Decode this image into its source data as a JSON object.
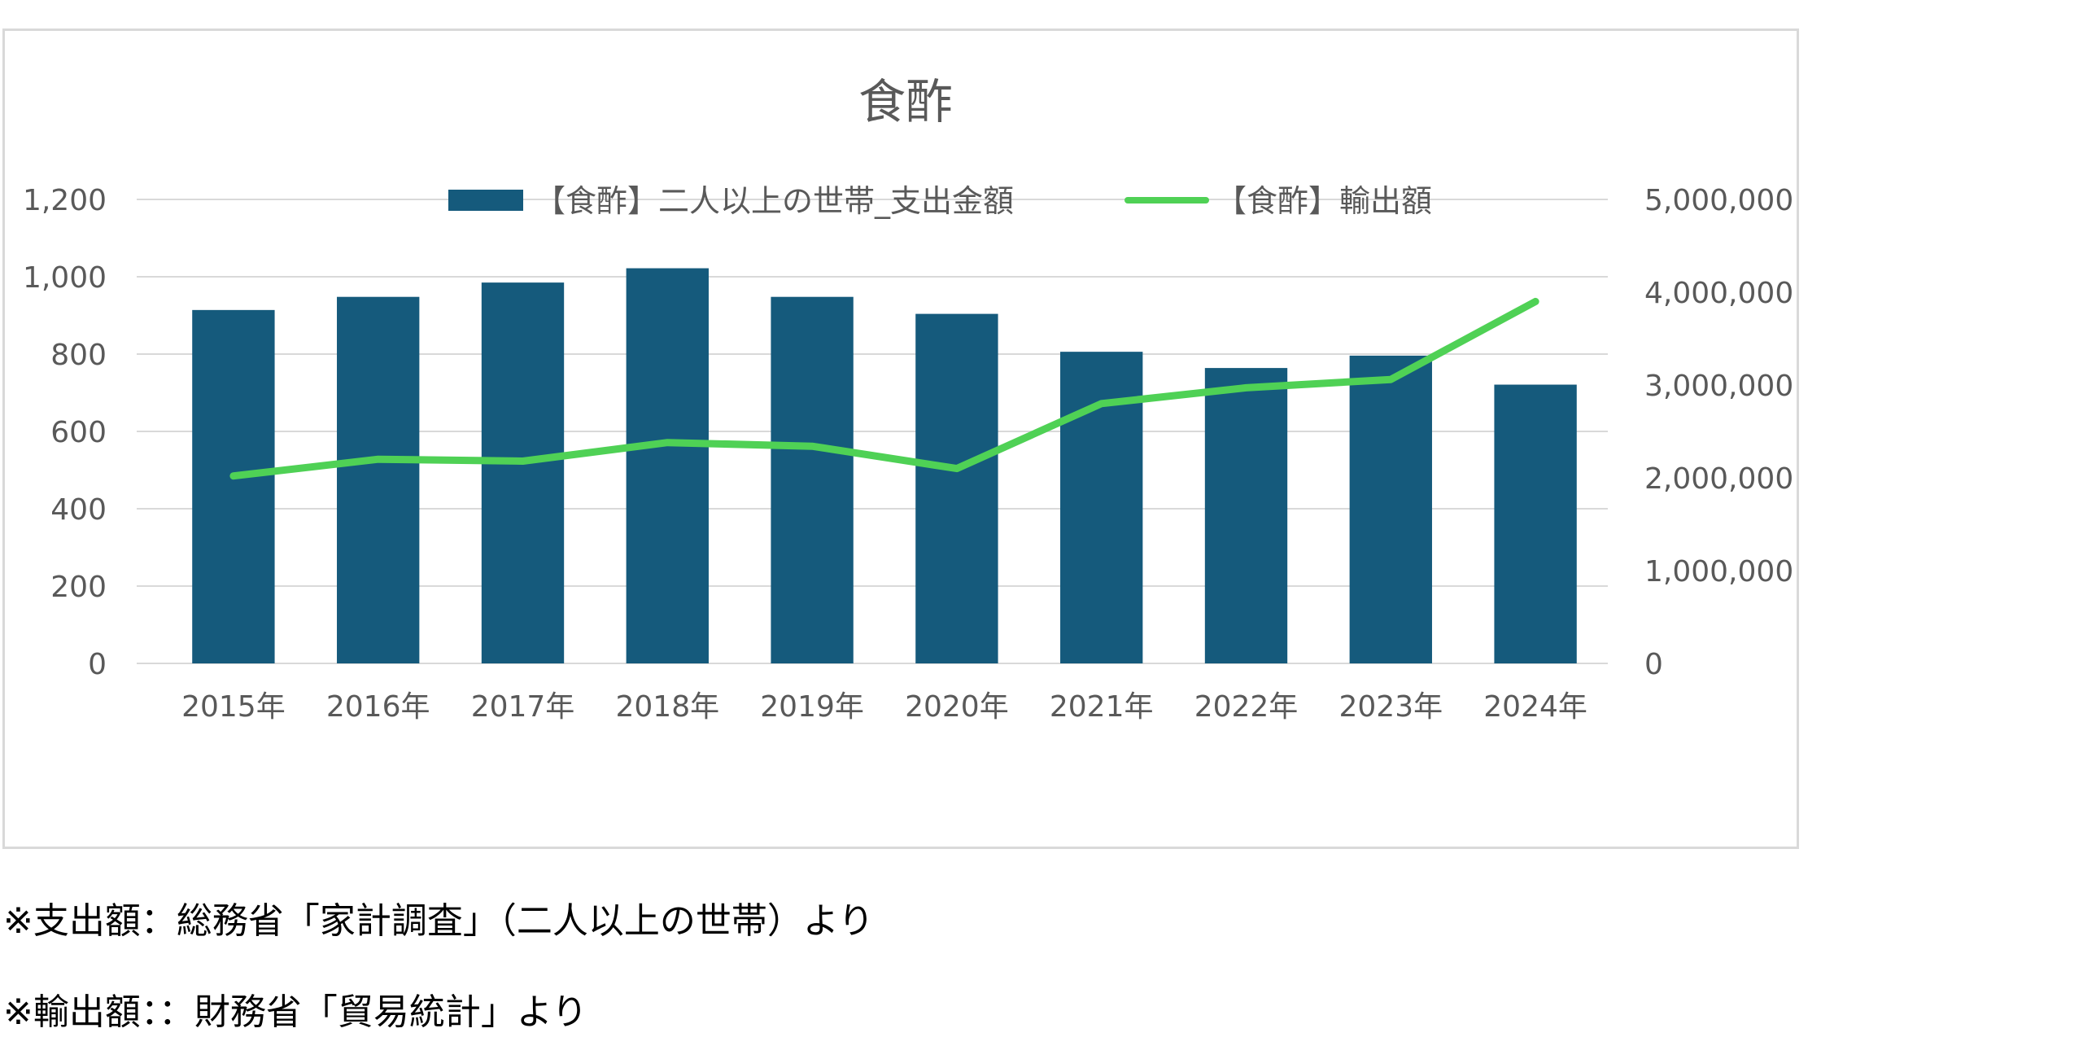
{
  "chart_data": {
    "type": "bar",
    "title": "食酢",
    "categories": [
      "2015年",
      "2016年",
      "2017年",
      "2018年",
      "2019年",
      "2020年",
      "2021年",
      "2022年",
      "2023年",
      "2024年"
    ],
    "series": [
      {
        "name": "【食酢】二人以上の世帯_支出金額",
        "type": "bar",
        "axis": "left",
        "color": "#155a7c",
        "values": [
          914,
          948,
          985,
          1022,
          948,
          904,
          806,
          764,
          796,
          721
        ]
      },
      {
        "name": "【食酢】輸出額",
        "type": "line",
        "axis": "right",
        "color": "#4fd155",
        "values": [
          2020000,
          2200000,
          2180000,
          2380000,
          2340000,
          2100000,
          2800000,
          2970000,
          3060000,
          3900000
        ]
      }
    ],
    "y_left": {
      "min": 0,
      "max": 1200,
      "ticks": [
        "0",
        "200",
        "400",
        "600",
        "800",
        "1,000",
        "1,200"
      ]
    },
    "y_right": {
      "min": 0,
      "max": 5000000,
      "ticks": [
        "0",
        "1,000,000",
        "2,000,000",
        "3,000,000",
        "4,000,000",
        "5,000,000"
      ]
    },
    "grid": true,
    "legend_position": "top"
  },
  "notes": [
    "※支出額：総務省「家計調査」（二人以上の世帯）より",
    "※輸出額：：財務省「貿易統計」より"
  ],
  "colors": {
    "gridline": "#d9d9d9",
    "axis_text": "#595959",
    "title_text": "#595959"
  }
}
